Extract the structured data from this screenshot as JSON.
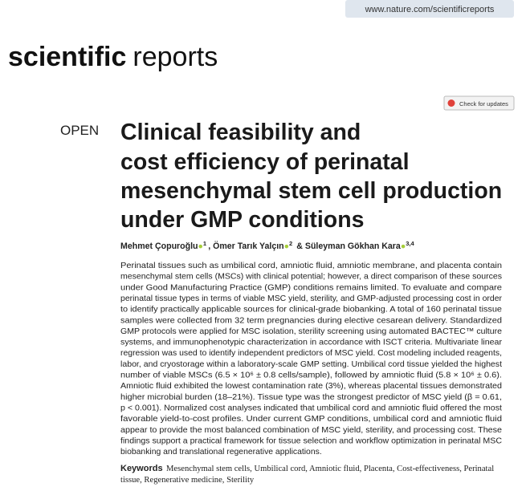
{
  "header": {
    "url": "www.nature.com/scientificreports",
    "journal_bold": "scientific",
    "journal_regular": "reports",
    "update_button": "Check for updates"
  },
  "article": {
    "access": "OPEN",
    "title_lines": [
      "Clinical feasibility and",
      "cost efficiency of perinatal",
      "mesenchymal stem cell production",
      "under GMP conditions"
    ],
    "authors": [
      {
        "name": "Mehmet Çopuroğlu",
        "affil": "1"
      },
      {
        "name": ", Ömer Tarık Yalçın",
        "affil": "2"
      },
      {
        "name": " & Süleyman Gökhan Kara",
        "affil": "3,4"
      }
    ],
    "abstract_lines": [
      "Perinatal tissues such as umbilical cord, amniotic fluid, amniotic membrane, and placenta contain",
      "mesenchymal stem cells (MSCs) with clinical potential; however, a direct comparison of these sources",
      "under Good Manufacturing Practice (GMP) conditions remains limited. To evaluate and compare",
      "perinatal tissue types in terms of viable MSC yield, sterility, and GMP-adjusted processing cost in order",
      "to identify practically applicable sources for clinical-grade biobanking. A total of 160 perinatal tissue",
      "samples were collected from 32 term pregnancies during elective cesarean delivery. Standardized",
      "GMP protocols were applied for MSC isolation, sterility screening using automated BACTEC™ culture",
      "systems, and immunophenotypic characterization in accordance with ISCT criteria. Multivariate linear",
      "regression was used to identify independent predictors of MSC yield. Cost modeling included reagents,",
      "labor, and cryostorage within a laboratory-scale GMP setting. Umbilical cord tissue yielded the highest",
      "number of viable MSCs (6.5 × 10⁶ ± 0.8 cells/sample), followed by amniotic fluid (5.8 × 10⁶ ± 0.6).",
      "Amniotic fluid exhibited the lowest contamination rate (3%), whereas placental tissues demonstrated",
      "higher microbial burden (18–21%). Tissue type was the strongest predictor of MSC yield (β = 0.61,",
      "p < 0.001). Normalized cost analyses indicated that umbilical cord and amniotic fluid offered the most",
      "favorable yield-to-cost profiles. Under current GMP conditions, umbilical cord and amniotic fluid",
      "appear to provide the most balanced combination of MSC yield, sterility, and processing cost. These",
      "findings support a practical framework for tissue selection and workflow optimization in perinatal MSC",
      "biobanking and translational regenerative applications."
    ],
    "keywords_label": "Keywords",
    "keywords_lines": [
      "Mesenchymal stem cells, Umbilical cord, Amniotic fluid, Placenta, Cost-effectiveness, Perinatal",
      "tissue, Regenerative medicine, Sterility"
    ]
  }
}
